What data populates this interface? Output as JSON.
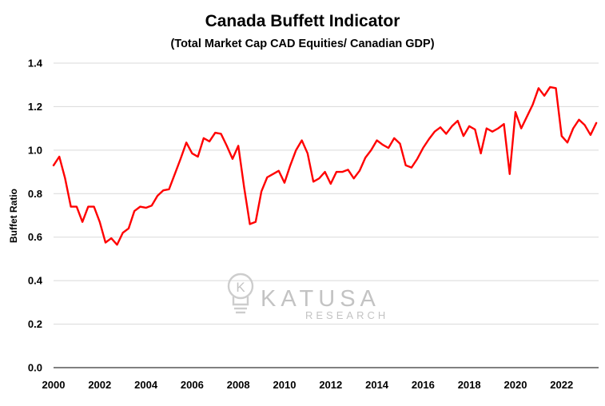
{
  "chart_data": {
    "type": "line",
    "title": "Canada Buffett Indicator",
    "subtitle": "(Total Market Cap CAD Equities/ Canadian GDP)",
    "xlabel": "",
    "ylabel": "Buffet Ratio",
    "xlim": [
      2000,
      2023.6
    ],
    "ylim": [
      0,
      1.4
    ],
    "x_ticks": [
      "2000",
      "2002",
      "2004",
      "2006",
      "2008",
      "2010",
      "2012",
      "2014",
      "2016",
      "2018",
      "2020",
      "2022"
    ],
    "y_ticks": [
      "0.0",
      "0.2",
      "0.4",
      "0.6",
      "0.8",
      "1.0",
      "1.2",
      "1.4"
    ],
    "grid": true,
    "legend": "none",
    "series": [
      {
        "color": "#ff0000",
        "x": [
          2000.0,
          2000.25,
          2000.5,
          2000.75,
          2001.0,
          2001.25,
          2001.5,
          2001.75,
          2002.0,
          2002.25,
          2002.5,
          2002.75,
          2003.0,
          2003.25,
          2003.5,
          2003.75,
          2004.0,
          2004.25,
          2004.5,
          2004.75,
          2005.0,
          2005.25,
          2005.5,
          2005.75,
          2006.0,
          2006.25,
          2006.5,
          2006.75,
          2007.0,
          2007.25,
          2007.5,
          2007.75,
          2008.0,
          2008.25,
          2008.5,
          2008.75,
          2009.0,
          2009.25,
          2009.5,
          2009.75,
          2010.0,
          2010.25,
          2010.5,
          2010.75,
          2011.0,
          2011.25,
          2011.5,
          2011.75,
          2012.0,
          2012.25,
          2012.5,
          2012.75,
          2013.0,
          2013.25,
          2013.5,
          2013.75,
          2014.0,
          2014.25,
          2014.5,
          2014.75,
          2015.0,
          2015.25,
          2015.5,
          2015.75,
          2016.0,
          2016.25,
          2016.5,
          2016.75,
          2017.0,
          2017.25,
          2017.5,
          2017.75,
          2018.0,
          2018.25,
          2018.5,
          2018.75,
          2019.0,
          2019.25,
          2019.5,
          2019.75,
          2020.0,
          2020.25,
          2020.5,
          2020.75,
          2021.0,
          2021.25,
          2021.5,
          2021.75,
          2022.0,
          2022.25,
          2022.5,
          2022.75,
          2023.0,
          2023.25,
          2023.5
        ],
        "y": [
          0.93,
          0.97,
          0.87,
          0.74,
          0.74,
          0.67,
          0.74,
          0.74,
          0.67,
          0.575,
          0.595,
          0.565,
          0.62,
          0.64,
          0.72,
          0.74,
          0.735,
          0.745,
          0.79,
          0.815,
          0.82,
          0.89,
          0.96,
          1.035,
          0.985,
          0.97,
          1.055,
          1.04,
          1.08,
          1.075,
          1.02,
          0.96,
          1.02,
          0.83,
          0.66,
          0.67,
          0.81,
          0.875,
          0.89,
          0.905,
          0.85,
          0.93,
          1.0,
          1.045,
          0.985,
          0.855,
          0.87,
          0.9,
          0.845,
          0.9,
          0.9,
          0.91,
          0.87,
          0.905,
          0.965,
          1.0,
          1.045,
          1.025,
          1.01,
          1.055,
          1.03,
          0.93,
          0.92,
          0.96,
          1.01,
          1.05,
          1.085,
          1.105,
          1.075,
          1.11,
          1.135,
          1.065,
          1.11,
          1.095,
          0.985,
          1.1,
          1.085,
          1.1,
          1.12,
          0.89,
          1.175,
          1.1,
          1.155,
          1.21,
          1.285,
          1.25,
          1.29,
          1.285,
          1.065,
          1.035,
          1.1,
          1.14,
          1.115,
          1.07,
          1.125
        ]
      }
    ]
  },
  "watermark": {
    "brand": "KATUSA",
    "sub": "RESEARCH",
    "logo_initial": "K"
  }
}
